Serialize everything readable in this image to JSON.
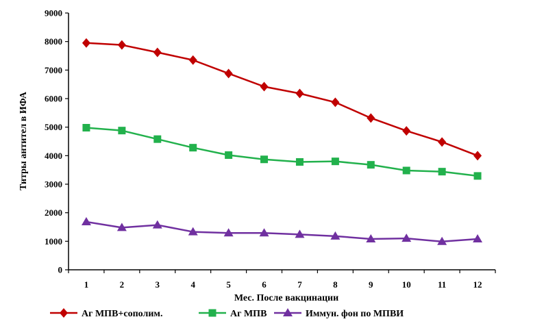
{
  "chart_data": {
    "type": "line",
    "title": "",
    "xlabel": "Мес. После вакцинации",
    "ylabel": "Титры антител в ИФА",
    "categories": [
      "1",
      "2",
      "3",
      "4",
      "5",
      "6",
      "7",
      "8",
      "9",
      "10",
      "11",
      "12"
    ],
    "y_ticks": [
      "0",
      "1000",
      "2000",
      "3000",
      "4000",
      "5000",
      "6000",
      "7000",
      "8000",
      "9000"
    ],
    "ylim": [
      0,
      9000
    ],
    "grid": false,
    "legend_position": "bottom",
    "series": [
      {
        "name": "Аг МПВ+сополим.",
        "color": "#c00000",
        "marker": "diamond",
        "values": [
          7950,
          7880,
          7620,
          7350,
          6880,
          6420,
          6180,
          5870,
          5320,
          4870,
          4480,
          4000
        ]
      },
      {
        "name": "Аг МПВ",
        "color": "#22b14c",
        "marker": "square",
        "values": [
          4980,
          4880,
          4580,
          4280,
          4020,
          3870,
          3780,
          3800,
          3680,
          3480,
          3440,
          3290
        ]
      },
      {
        "name": "Иммун. фон по МПВИ",
        "color": "#7030a0",
        "marker": "triangle",
        "values": [
          1680,
          1480,
          1570,
          1330,
          1290,
          1290,
          1240,
          1180,
          1080,
          1100,
          990,
          1080
        ]
      }
    ]
  }
}
